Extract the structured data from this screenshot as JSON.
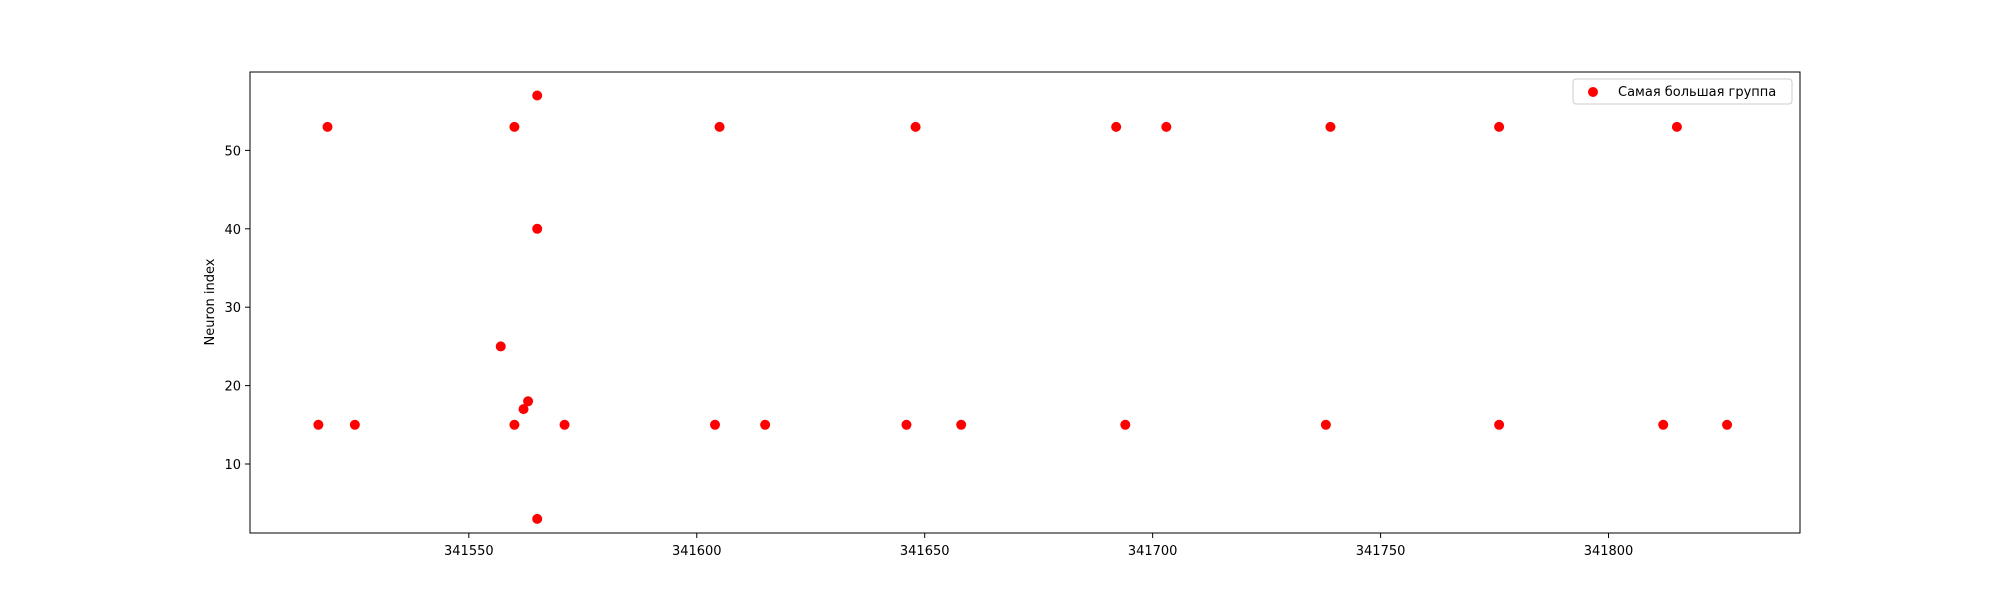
{
  "chart_data": {
    "type": "scatter",
    "title": "",
    "xlabel": "",
    "ylabel": "Neuron index",
    "xlim": [
      341502,
      341842
    ],
    "ylim": [
      1.2,
      60.0
    ],
    "xticks": [
      341550,
      341600,
      341650,
      341700,
      341750,
      341800
    ],
    "yticks": [
      10,
      20,
      30,
      40,
      50
    ],
    "grid": false,
    "legend_position": "top-right",
    "series": [
      {
        "name": "Самая большая группа",
        "color": "#ff0000",
        "points": [
          {
            "x": 341517,
            "y": 15
          },
          {
            "x": 341519,
            "y": 53
          },
          {
            "x": 341525,
            "y": 15
          },
          {
            "x": 341557,
            "y": 25
          },
          {
            "x": 341560,
            "y": 53
          },
          {
            "x": 341560,
            "y": 15
          },
          {
            "x": 341562,
            "y": 17
          },
          {
            "x": 341563,
            "y": 18
          },
          {
            "x": 341565,
            "y": 40
          },
          {
            "x": 341565,
            "y": 57
          },
          {
            "x": 341565,
            "y": 3
          },
          {
            "x": 341571,
            "y": 15
          },
          {
            "x": 341604,
            "y": 15
          },
          {
            "x": 341605,
            "y": 53
          },
          {
            "x": 341615,
            "y": 15
          },
          {
            "x": 341646,
            "y": 15
          },
          {
            "x": 341648,
            "y": 53
          },
          {
            "x": 341658,
            "y": 15
          },
          {
            "x": 341692,
            "y": 53
          },
          {
            "x": 341694,
            "y": 15
          },
          {
            "x": 341703,
            "y": 53
          },
          {
            "x": 341738,
            "y": 15
          },
          {
            "x": 341739,
            "y": 53
          },
          {
            "x": 341776,
            "y": 53
          },
          {
            "x": 341776,
            "y": 15
          },
          {
            "x": 341812,
            "y": 15
          },
          {
            "x": 341815,
            "y": 53
          },
          {
            "x": 341826,
            "y": 15
          }
        ]
      }
    ]
  }
}
